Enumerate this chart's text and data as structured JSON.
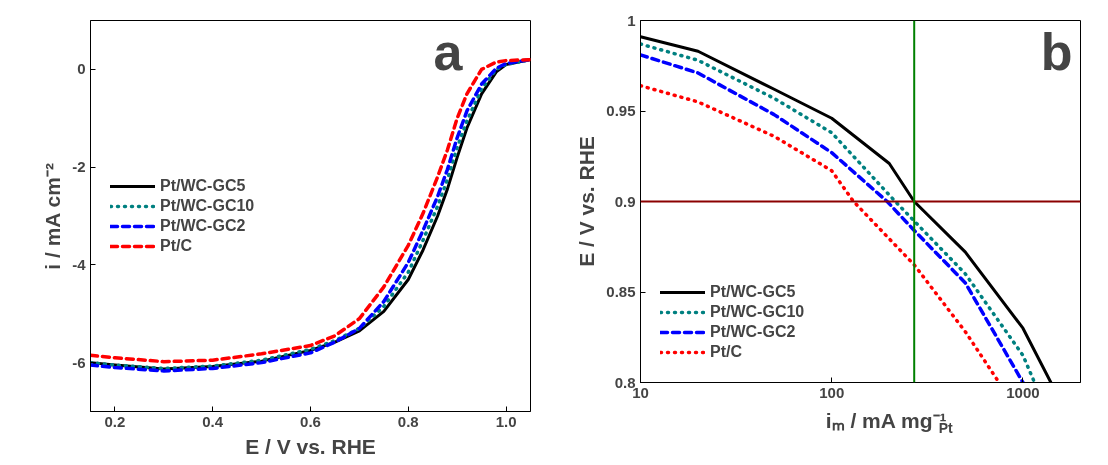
{
  "chart_data": [
    {
      "type": "line",
      "xlabel": "E / V vs. RHE",
      "ylabel": "i / mA cm⁻²",
      "annotations": [
        "a"
      ],
      "xlim": [
        0.15,
        1.05
      ],
      "ylim": [
        -7,
        1
      ],
      "xticks": [
        {
          "value": 0.2,
          "label": "0.2"
        },
        {
          "value": 0.4,
          "label": "0.4"
        },
        {
          "value": 0.6,
          "label": "0.6"
        },
        {
          "value": 0.8,
          "label": "0.8"
        },
        {
          "value": 1.0,
          "label": "1.0"
        }
      ],
      "yticks": [
        -6,
        -4,
        -2,
        0
      ],
      "legend": "left",
      "grid": false,
      "x": [
        0.15,
        0.2,
        0.3,
        0.4,
        0.5,
        0.6,
        0.65,
        0.7,
        0.75,
        0.8,
        0.83,
        0.86,
        0.88,
        0.9,
        0.92,
        0.95,
        0.98,
        1.0,
        1.05
      ],
      "series": [
        {
          "name": "Pt/WC-GC5",
          "color": "#000000",
          "line_style": "solid",
          "values": [
            -6.0,
            -6.05,
            -6.13,
            -6.08,
            -5.97,
            -5.75,
            -5.58,
            -5.35,
            -4.95,
            -4.3,
            -3.7,
            -3.0,
            -2.45,
            -1.8,
            -1.2,
            -0.5,
            -0.05,
            0.1,
            0.2
          ]
        },
        {
          "name": "Pt/WC-GC10",
          "color": "#008080",
          "line_style": "dotted",
          "values": [
            -6.0,
            -6.05,
            -6.12,
            -6.07,
            -5.95,
            -5.73,
            -5.55,
            -5.3,
            -4.85,
            -4.15,
            -3.5,
            -2.8,
            -2.25,
            -1.6,
            -1.05,
            -0.4,
            0.0,
            0.1,
            0.2
          ]
        },
        {
          "name": "Pt/WC-GC2",
          "color": "#0000ff",
          "line_style": "dashed",
          "values": [
            -6.05,
            -6.1,
            -6.17,
            -6.12,
            -6.0,
            -5.8,
            -5.58,
            -5.3,
            -4.75,
            -3.95,
            -3.3,
            -2.6,
            -2.05,
            -1.4,
            -0.85,
            -0.3,
            0.02,
            0.12,
            0.2
          ]
        },
        {
          "name": "Pt/C",
          "color": "#ff0000",
          "line_style": "dashed",
          "values": [
            -5.85,
            -5.9,
            -5.98,
            -5.95,
            -5.82,
            -5.65,
            -5.45,
            -5.1,
            -4.45,
            -3.6,
            -2.95,
            -2.2,
            -1.65,
            -1.0,
            -0.5,
            0.0,
            0.15,
            0.18,
            0.2
          ]
        }
      ]
    },
    {
      "type": "line",
      "xlabel": "iₘ / mA mg⁻¹$_{Pt}$",
      "ylabel": "E / V vs. RHE",
      "annotations": [
        "b"
      ],
      "log": "x",
      "xlim": [
        10,
        2000
      ],
      "ylim": [
        0.8,
        1.0
      ],
      "xticks": [
        10,
        100,
        1000
      ],
      "yticks": [
        0.8,
        0.85,
        0.9,
        0.95,
        1
      ],
      "legend": "bottom left",
      "grid": false,
      "ref_lines": [
        {
          "axis": "y",
          "value": 0.9,
          "color": "#8b0000"
        },
        {
          "axis": "x",
          "value": 270,
          "color": "#008000"
        }
      ],
      "series": [
        {
          "name": "Pt/WC-GC5",
          "color": "#000000",
          "line_style": "solid",
          "x": [
            10,
            20,
            50,
            100,
            200,
            270,
            500,
            1000,
            1400
          ],
          "values": [
            0.991,
            0.983,
            0.962,
            0.946,
            0.921,
            0.9,
            0.872,
            0.83,
            0.8
          ]
        },
        {
          "name": "Pt/WC-GC10",
          "color": "#008080",
          "line_style": "dotted",
          "x": [
            10,
            20,
            50,
            100,
            215,
            500,
            1000,
            1150
          ],
          "values": [
            0.987,
            0.978,
            0.957,
            0.938,
            0.9,
            0.86,
            0.815,
            0.8
          ]
        },
        {
          "name": "Pt/WC-GC2",
          "color": "#0000ff",
          "line_style": "dashed",
          "x": [
            10,
            20,
            50,
            100,
            195,
            270,
            500,
            1000
          ],
          "values": [
            0.981,
            0.971,
            0.948,
            0.927,
            0.9,
            0.884,
            0.855,
            0.8
          ]
        },
        {
          "name": "Pt/C",
          "color": "#ff0000",
          "line_style": "dotted",
          "x": [
            10,
            20,
            50,
            100,
            130,
            270,
            500,
            750
          ],
          "values": [
            0.964,
            0.955,
            0.936,
            0.917,
            0.9,
            0.865,
            0.828,
            0.8
          ]
        }
      ]
    }
  ]
}
